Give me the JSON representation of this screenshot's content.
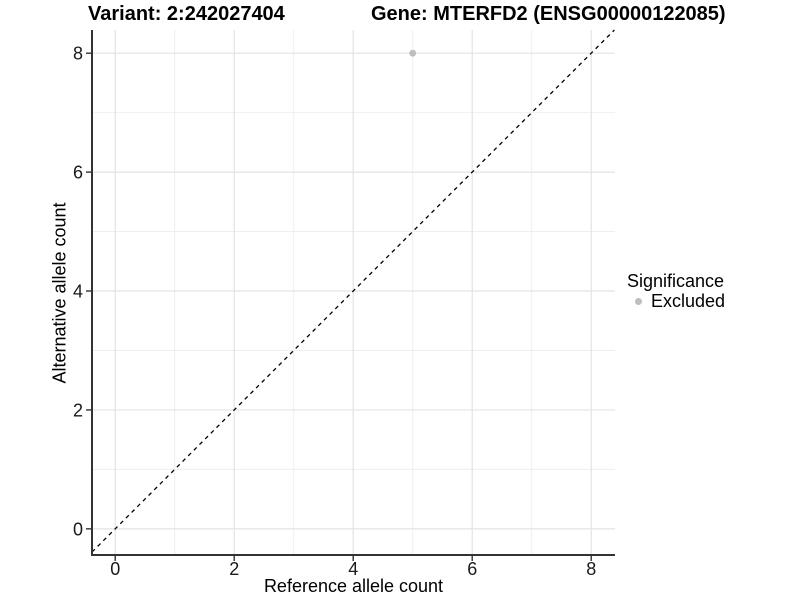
{
  "header": {
    "title_left": "Variant: 2:242027404",
    "title_right": "Gene: MTERFD2 (ENSG00000122085)"
  },
  "chart_data": {
    "type": "scatter",
    "xlabel": "Reference allele count",
    "ylabel": "Alternative allele count",
    "x_ticks": [
      0,
      2,
      4,
      6,
      8
    ],
    "y_ticks": [
      0,
      2,
      4,
      6,
      8
    ],
    "x_minor_ticks": [
      1,
      3,
      5,
      7
    ],
    "y_minor_ticks": [
      1,
      3,
      5,
      7
    ],
    "xlim": [
      -0.39,
      8.4
    ],
    "ylim": [
      -0.44,
      8.39
    ],
    "grid": "major+minor",
    "points": [
      {
        "x": 5,
        "y": 8,
        "series": "Excluded"
      }
    ],
    "reference_line": {
      "slope": 1,
      "intercept": 0,
      "style": "dashed",
      "color": "#000000"
    },
    "legend": {
      "title": "Significance",
      "position": "right",
      "entries": [
        {
          "label": "Excluded",
          "color": "#bebebe"
        }
      ]
    },
    "colors": {
      "grid_major": "#e3e3e3",
      "grid_minor": "#ededed",
      "axis": "#333333",
      "point": "#bebebe",
      "background": "#ffffff"
    }
  }
}
